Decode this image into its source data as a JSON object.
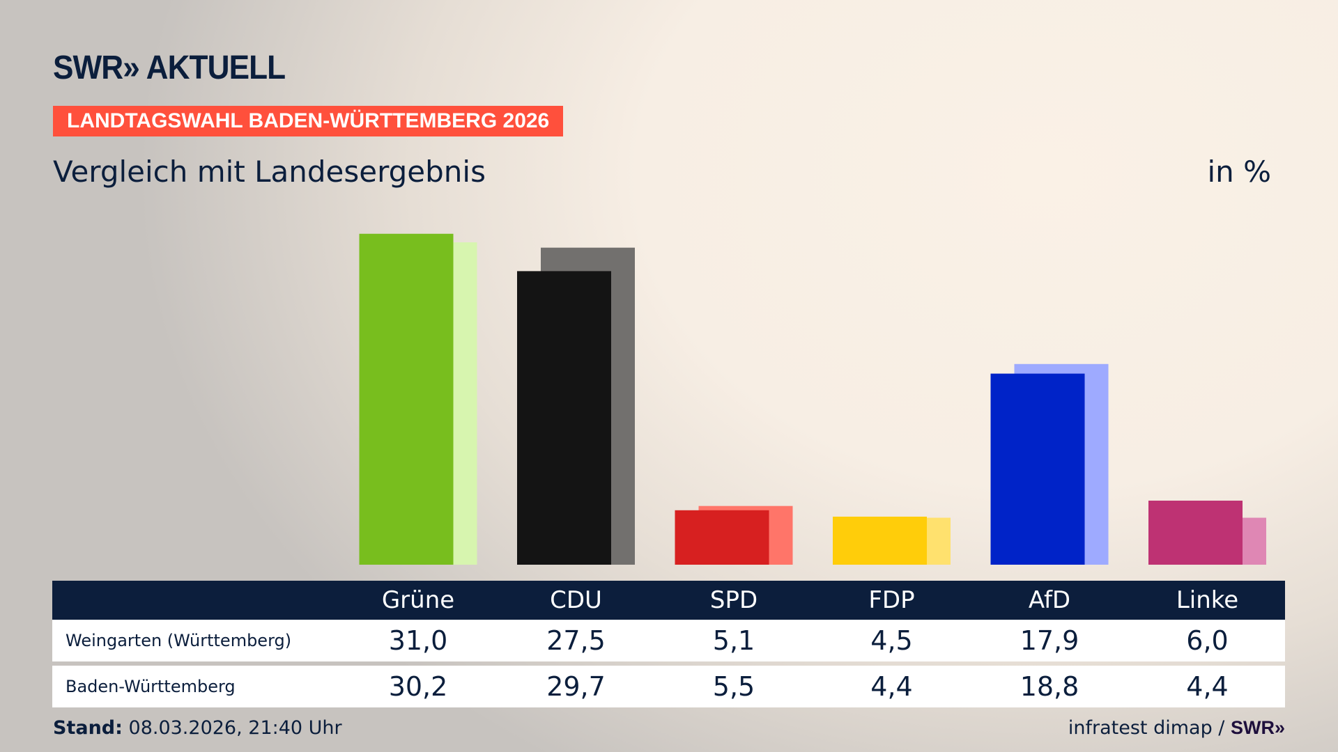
{
  "header": {
    "logo": "SWR» AKTUELL",
    "banner": "LANDTAGSWAHL BADEN-WÜRTTEMBERG 2026",
    "subtitle": "Vergleich mit Landesergebnis",
    "unit": "in %"
  },
  "chart_data": {
    "type": "bar",
    "categories": [
      "Grüne",
      "CDU",
      "SPD",
      "FDP",
      "AfD",
      "Linke"
    ],
    "series": [
      {
        "name": "Weingarten (Württemberg)",
        "values": [
          31.0,
          27.5,
          5.1,
          4.5,
          17.9,
          6.0
        ],
        "colors": [
          "#78be1e",
          "#141414",
          "#d72020",
          "#ffcd0a",
          "#0023c8",
          "#be3273"
        ]
      },
      {
        "name": "Baden-Württemberg",
        "values": [
          30.2,
          29.7,
          5.5,
          4.4,
          18.8,
          4.4
        ],
        "colors": [
          "#d7f5af",
          "#72706e",
          "#ff7569",
          "#ffe16e",
          "#9eaaff",
          "#df87b4"
        ]
      }
    ],
    "display": [
      {
        "label": "Weingarten (Württemberg)",
        "values": [
          "31,0",
          "27,5",
          "5,1",
          "4,5",
          "17,9",
          "6,0"
        ]
      },
      {
        "label": "Baden-Württemberg",
        "values": [
          "30,2",
          "29,7",
          "5,5",
          "4,4",
          "18,8",
          "4,4"
        ]
      }
    ],
    "grid": false
  },
  "footer": {
    "stand_label": "Stand:",
    "stand_value": "08.03.2026, 21:40 Uhr",
    "source": "infratest dimap / ",
    "source_logo": "SWR»"
  }
}
